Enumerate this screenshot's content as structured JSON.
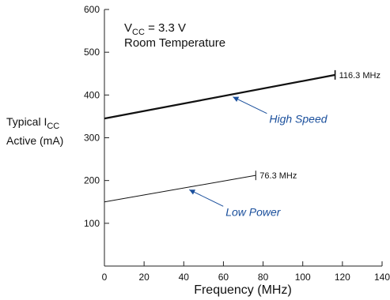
{
  "chart_data": {
    "type": "line",
    "xlabel": "Frequency (MHz)",
    "ylabel_line1": "Typical I",
    "ylabel_sub": "CC",
    "ylabel_line2": "Active (mA)",
    "xlim": [
      0,
      140
    ],
    "ylim": [
      0,
      600
    ],
    "xticks": [
      0,
      20,
      40,
      60,
      80,
      100,
      120,
      140
    ],
    "yticks": [
      100,
      200,
      300,
      400,
      500,
      600
    ],
    "condition_line1_prefix": "V",
    "condition_line1_sub": "CC",
    "condition_line1_suffix": " = 3.3 V",
    "condition_line2": "Room Temperature",
    "series": [
      {
        "name": "High Speed",
        "x": [
          0,
          116.3
        ],
        "y": [
          345,
          447
        ],
        "end_label": "116.3 MHz",
        "weight": "bold"
      },
      {
        "name": "Low Power",
        "x": [
          0,
          76.3
        ],
        "y": [
          150,
          212
        ],
        "end_label": "76.3 MHz",
        "weight": "normal"
      }
    ],
    "label_color": "#1a4f9c"
  }
}
